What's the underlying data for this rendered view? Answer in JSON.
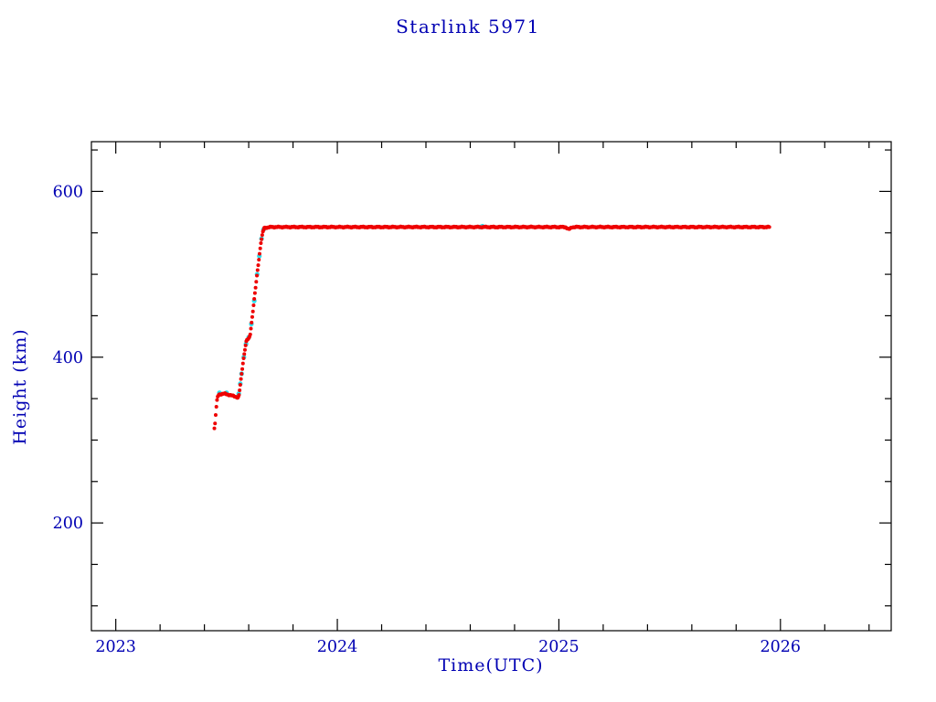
{
  "page": {
    "background": "#ffffff"
  },
  "chart_data": {
    "type": "scatter",
    "title": "Starlink 5971",
    "xlabel": "Time(UTC)",
    "ylabel": "Height (km)",
    "xlim": [
      2022.89,
      2026.5
    ],
    "ylim": [
      70,
      660
    ],
    "x_major_ticks": [
      2023,
      2024,
      2025,
      2026
    ],
    "x_tick_labels": [
      "2023",
      "2024",
      "2025",
      "2026"
    ],
    "x_minor_step": 0.2,
    "y_major_ticks": [
      200,
      400,
      600
    ],
    "y_tick_labels": [
      "200",
      "400",
      "600"
    ],
    "y_minor_step": 50,
    "grid": false,
    "legend": null,
    "colors": {
      "text": "#0000b3",
      "frame": "#000000",
      "background": "#ffffff"
    },
    "series": [
      {
        "name": "height-secondary-cyan",
        "color": "#2ee0ee",
        "marker": "dot",
        "marker_radius": 2.6,
        "points": [
          [
            2023.468,
            357
          ],
          [
            2023.5,
            357
          ],
          [
            2023.555,
            356
          ],
          [
            2023.562,
            368
          ],
          [
            2023.568,
            380
          ],
          [
            2023.578,
            400
          ],
          [
            2023.588,
            416
          ],
          [
            2023.6,
            424
          ],
          [
            2023.612,
            440
          ],
          [
            2023.625,
            468
          ],
          [
            2023.638,
            500
          ],
          [
            2023.648,
            522
          ],
          [
            2023.658,
            543
          ],
          [
            2023.667,
            554
          ],
          [
            2024.645,
            557
          ],
          [
            2024.655,
            558
          ]
        ]
      },
      {
        "name": "height-primary-red",
        "color": "#ee0000",
        "marker": "dot",
        "marker_radius": 2.0,
        "sample_step_years": 0.003,
        "noise_km": 0.8,
        "profile": [
          [
            2023.445,
            314
          ],
          [
            2023.448,
            320
          ],
          [
            2023.452,
            334
          ],
          [
            2023.456,
            346
          ],
          [
            2023.46,
            352
          ],
          [
            2023.465,
            355
          ],
          [
            2023.49,
            356
          ],
          [
            2023.52,
            354
          ],
          [
            2023.545,
            352
          ],
          [
            2023.552,
            351
          ],
          [
            2023.556,
            354
          ],
          [
            2023.56,
            362
          ],
          [
            2023.575,
            395
          ],
          [
            2023.585,
            413
          ],
          [
            2023.59,
            420
          ],
          [
            2023.602,
            423
          ],
          [
            2023.607,
            428
          ],
          [
            2023.62,
            458
          ],
          [
            2023.64,
            505
          ],
          [
            2023.655,
            538
          ],
          [
            2023.664,
            551
          ],
          [
            2023.67,
            556
          ],
          [
            2023.7,
            557
          ],
          [
            2024.5,
            557
          ],
          [
            2025.03,
            557
          ],
          [
            2025.045,
            554
          ],
          [
            2025.06,
            557
          ],
          [
            2025.95,
            557
          ]
        ]
      }
    ]
  }
}
